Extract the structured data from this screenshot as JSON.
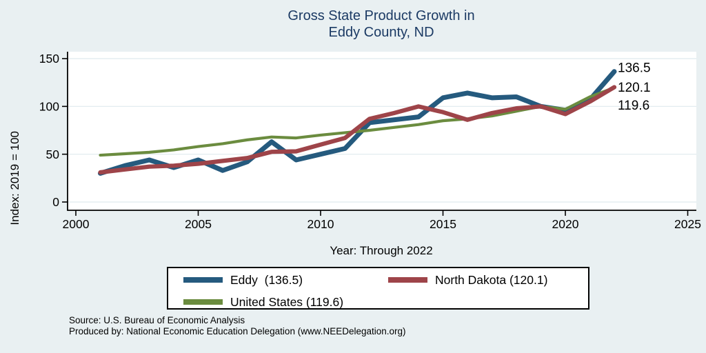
{
  "page": {
    "background": "#e9f0f2"
  },
  "title": {
    "line1": "Gross State Product Growth in",
    "line2": "Eddy County, ND",
    "color": "#1b3a64"
  },
  "chart_data": {
    "type": "line",
    "title": "Gross State Product Growth in Eddy County, ND",
    "xlabel": "Year: Through 2022",
    "ylabel": "Index: 2019 = 100",
    "xlim": [
      2000,
      2025
    ],
    "ylim": [
      0,
      150
    ],
    "xticks": [
      2000,
      2005,
      2010,
      2015,
      2020,
      2025
    ],
    "yticks": [
      0,
      50,
      100,
      150
    ],
    "grid": "horizontal",
    "legend_position": "bottom",
    "x": [
      2001,
      2002,
      2003,
      2004,
      2005,
      2006,
      2007,
      2008,
      2009,
      2010,
      2011,
      2012,
      2013,
      2014,
      2015,
      2016,
      2017,
      2018,
      2019,
      2020,
      2021,
      2022
    ],
    "series": [
      {
        "name": "Eddy",
        "color": "#255a7e",
        "end_label": "136.5",
        "values": [
          30,
          38,
          44,
          36,
          44,
          33,
          42,
          63,
          44,
          50,
          56,
          83,
          86,
          89,
          109,
          114,
          109,
          110,
          100,
          96,
          107,
          136.5
        ]
      },
      {
        "name": "North Dakota",
        "color": "#9e4449",
        "end_label": "120.1",
        "values": [
          31,
          34,
          37,
          38,
          40,
          43,
          46,
          52.5,
          53,
          60,
          67,
          87,
          93,
          100,
          94,
          86,
          93,
          98,
          100,
          92,
          105,
          120.1
        ]
      },
      {
        "name": "United States",
        "color": "#6b8c3f",
        "end_label": "119.6",
        "values": [
          49,
          50.5,
          52,
          54.5,
          58,
          61,
          65,
          68,
          67,
          70,
          72.5,
          75,
          78,
          81,
          85,
          87,
          90,
          95,
          100,
          97,
          110,
          119.6
        ]
      }
    ]
  },
  "legend": {
    "items": [
      {
        "label": "Eddy  (136.5)",
        "color": "#255a7e"
      },
      {
        "label": "North Dakota (120.1)",
        "color": "#9e4449"
      },
      {
        "label": "United States (119.6)",
        "color": "#6b8c3f"
      }
    ]
  },
  "footer": {
    "line1": "Source: U.S. Bureau of Economic Analysis",
    "line2": "Produced by: National Economic Education Delegation (www.NEEDelegation.org)"
  }
}
